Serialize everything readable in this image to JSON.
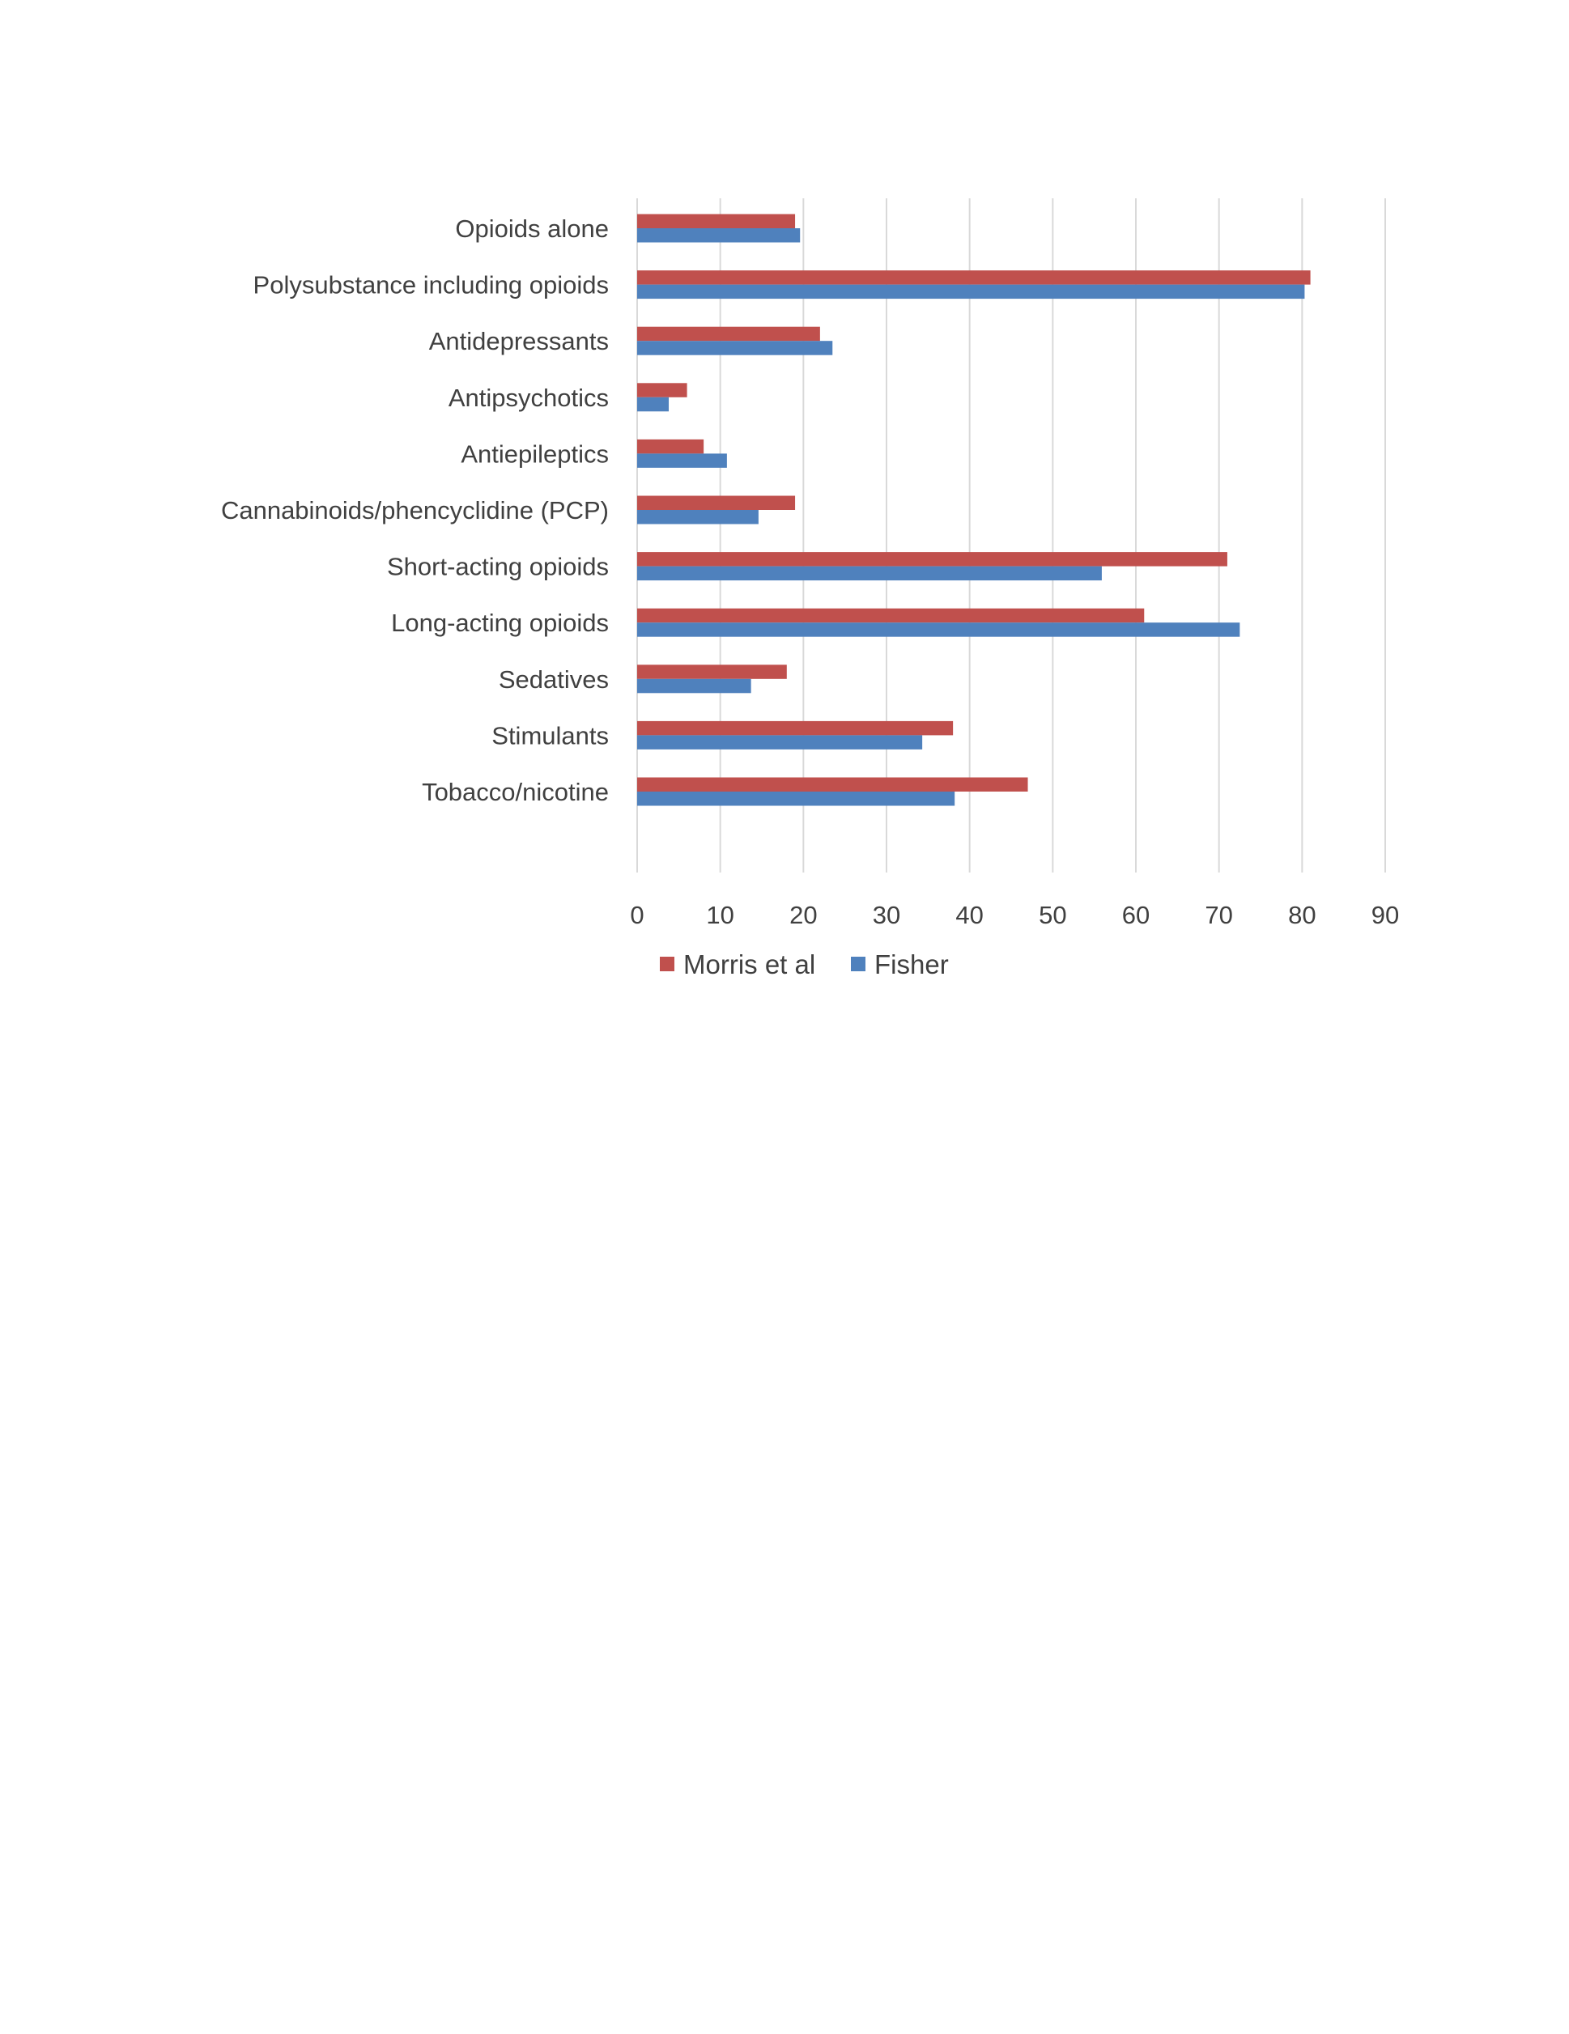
{
  "chart_data": {
    "type": "bar",
    "orientation": "horizontal",
    "categories": [
      "Opioids alone",
      "Polysubstance including opioids",
      "Antidepressants",
      "Antipsychotics",
      "Antiepileptics",
      "Cannabinoids/phencyclidine (PCP)",
      "Short-acting opioids",
      "Long-acting opioids",
      "Sedatives",
      "Stimulants",
      "Tobacco/nicotine"
    ],
    "series": [
      {
        "name": "Morris et al",
        "color": "#c0504d",
        "values": [
          19,
          81,
          22,
          6,
          8,
          19,
          71,
          61,
          18,
          38,
          47
        ]
      },
      {
        "name": "Fisher",
        "color": "#4f81bd",
        "values": [
          19.6,
          80.3,
          23.5,
          3.8,
          10.8,
          14.6,
          55.9,
          72.5,
          13.7,
          34.3,
          38.2
        ]
      }
    ],
    "xlim": [
      0,
      90
    ],
    "xticks": [
      0,
      10,
      20,
      30,
      40,
      50,
      60,
      70,
      80,
      90
    ],
    "gridlines": "vertical",
    "legend_position": "bottom",
    "gridline_color": "#d9d9d9"
  }
}
